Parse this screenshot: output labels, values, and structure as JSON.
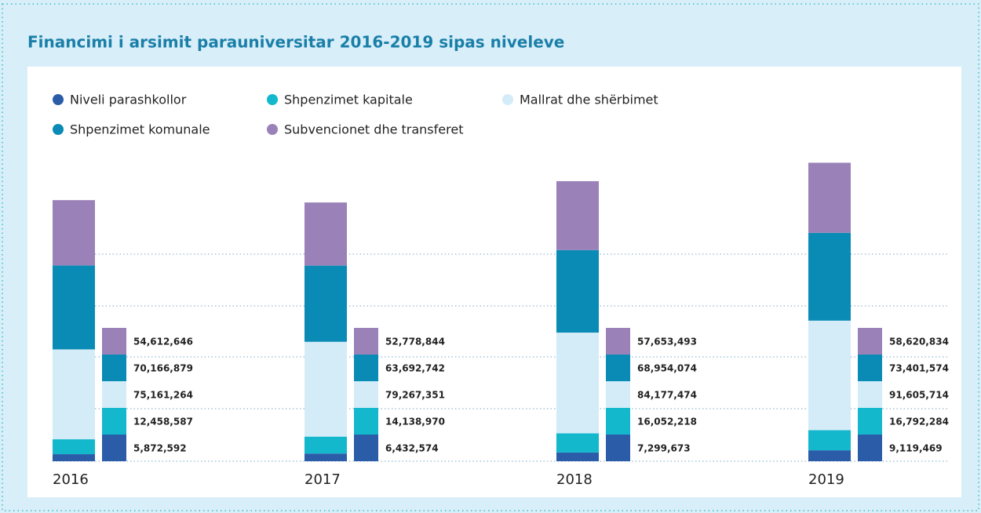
{
  "chart_data": {
    "type": "stacked-bar",
    "title": "Financimi i arsimit parauniversitar 2016-2019 sipas niveleve",
    "categories": [
      "2016",
      "2017",
      "2018",
      "2019"
    ],
    "series": [
      {
        "name": "Niveli parashkollor",
        "color": "#2b5ca8",
        "values": [
          5872592,
          6432574,
          7299673,
          9119469
        ],
        "value_labels": [
          "5,872,592",
          "6,432,574",
          "7,299,673",
          "9,119,469"
        ]
      },
      {
        "name": "Shpenzimet kapitale",
        "color": "#13b8cc",
        "values": [
          12458587,
          14138970,
          16052218,
          16792284
        ],
        "value_labels": [
          "12,458,587",
          "14,138,970",
          "16,052,218",
          "16,792,284"
        ]
      },
      {
        "name": "Mallrat dhe shërbimet",
        "color": "#d4ecf8",
        "values": [
          75161264,
          79267351,
          84177474,
          91605714
        ],
        "value_labels": [
          "75,161,264",
          "79,267,351",
          "84,177,474",
          "91,605,714"
        ]
      },
      {
        "name": "Shpenzimet komunale",
        "color": "#0a8bb5",
        "values": [
          70166879,
          63692742,
          68954074,
          73401574
        ],
        "value_labels": [
          "70,166,879",
          "63,692,742",
          "68,954,074",
          "73,401,574"
        ]
      },
      {
        "name": "Subvencionet dhe transferet",
        "color": "#9a82b9",
        "values": [
          54612646,
          52778844,
          57653493,
          58620834
        ],
        "value_labels": [
          "54,612,646",
          "52,778,844",
          "57,653,493",
          "58,620,834"
        ]
      }
    ]
  }
}
